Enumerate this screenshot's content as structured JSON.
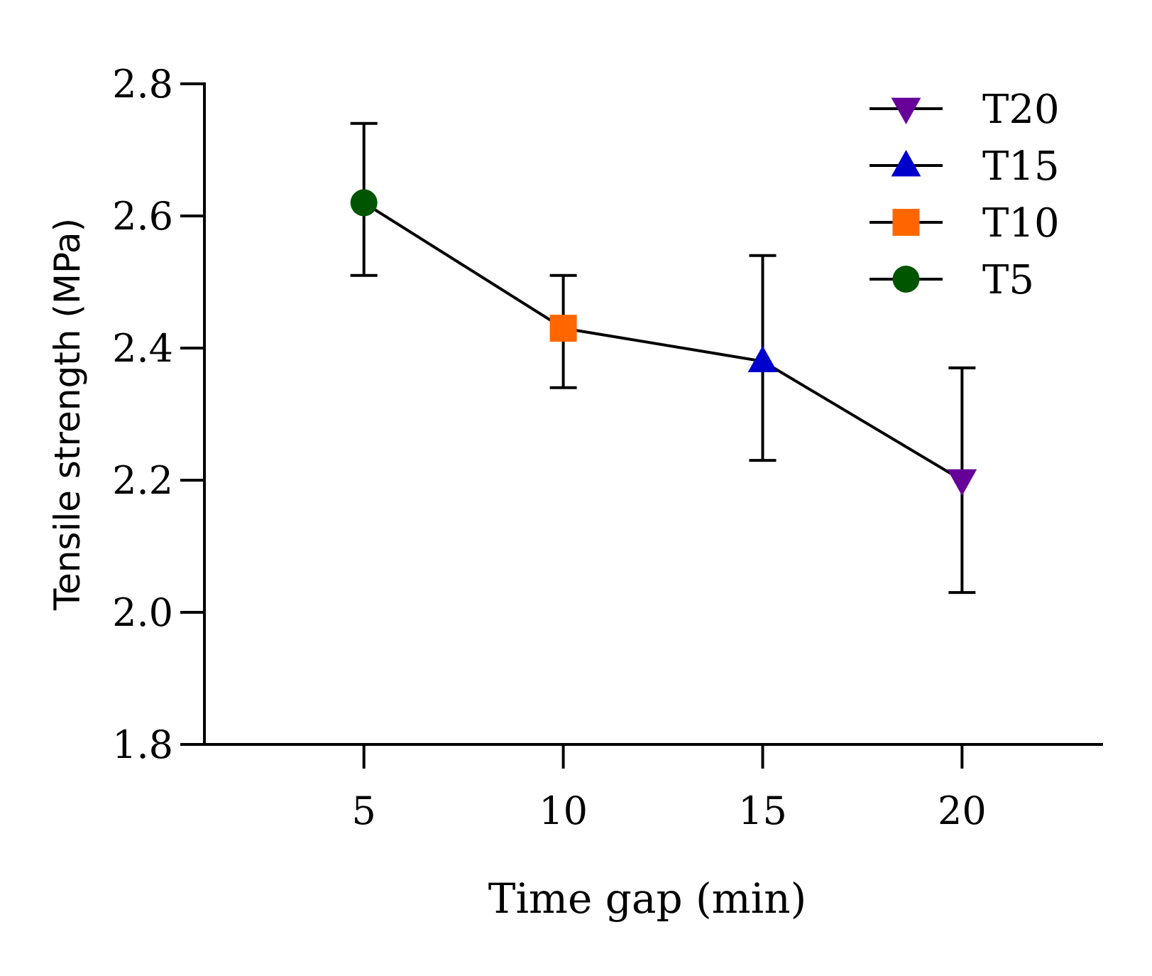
{
  "chart_data": {
    "type": "line",
    "title": "",
    "xlabel": "Time gap (min)",
    "ylabel": "Tensile strength (MPa)",
    "x_ticks": [
      "5",
      "10",
      "15",
      "20"
    ],
    "y_ticks": [
      "1.8",
      "2.0",
      "2.2",
      "2.4",
      "2.6",
      "2.8"
    ],
    "ylim": [
      1.8,
      2.8
    ],
    "xlim": [
      1,
      23.5
    ],
    "grid": false,
    "legend_position": "top-right",
    "points": [
      {
        "name": "T5",
        "x": 5,
        "y": 2.62,
        "err_low": 2.51,
        "err_high": 2.74,
        "marker": "circle",
        "color": "#005500"
      },
      {
        "name": "T10",
        "x": 10,
        "y": 2.43,
        "err_low": 2.34,
        "err_high": 2.51,
        "marker": "square",
        "color": "#ff6600"
      },
      {
        "name": "T15",
        "x": 15,
        "y": 2.38,
        "err_low": 2.23,
        "err_high": 2.54,
        "marker": "triangle-up",
        "color": "#0000cc"
      },
      {
        "name": "T20",
        "x": 20,
        "y": 2.2,
        "err_low": 2.03,
        "err_high": 2.37,
        "marker": "triangle-down",
        "color": "#660099"
      }
    ],
    "legend": [
      "T20",
      "T15",
      "T10",
      "T5"
    ]
  }
}
